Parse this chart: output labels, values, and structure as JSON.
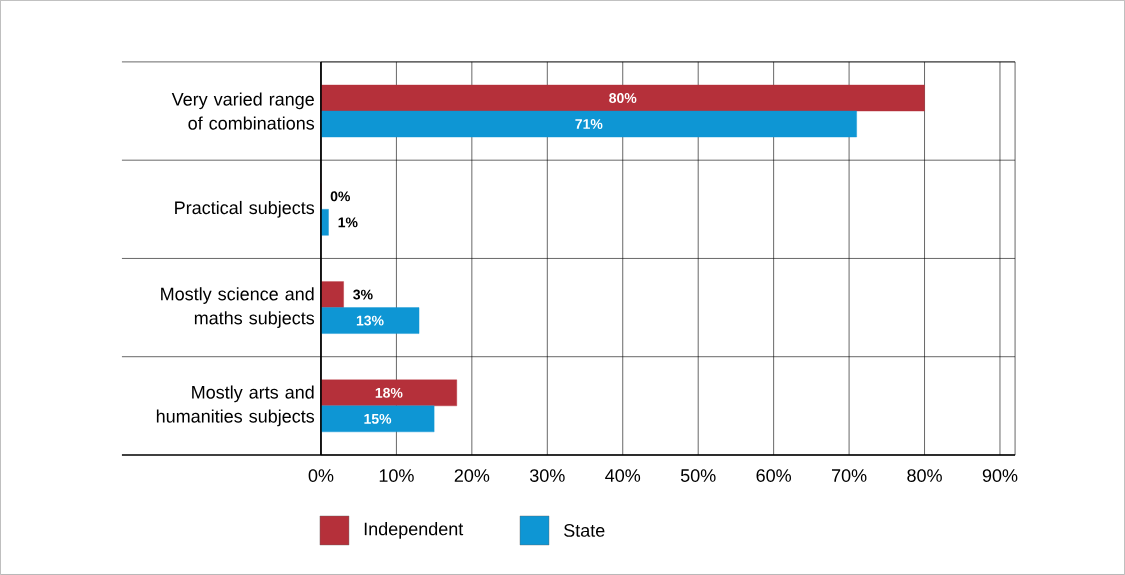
{
  "chart_data": {
    "type": "bar",
    "orientation": "horizontal",
    "categories": [
      "Very varied range of combinations",
      "Practical subjects",
      "Mostly science and maths subjects",
      "Mostly arts and humanities subjects"
    ],
    "series": [
      {
        "name": "Independent",
        "color": "#b5303a",
        "values": [
          80,
          0,
          3,
          18
        ],
        "value_labels": [
          "80%",
          "0%",
          "3%",
          "18%"
        ]
      },
      {
        "name": "State",
        "color": "#0e96d4",
        "values": [
          71,
          1,
          13,
          15
        ],
        "value_labels": [
          "71%",
          "1%",
          "13%",
          "15%"
        ]
      }
    ],
    "xlim": [
      0,
      92
    ],
    "xticks": [
      {
        "value": 0,
        "label": "0%"
      },
      {
        "value": 10,
        "label": "10%"
      },
      {
        "value": 20,
        "label": "20%"
      },
      {
        "value": 30,
        "label": "30%"
      },
      {
        "value": 40,
        "label": "40%"
      },
      {
        "value": 50,
        "label": "50%"
      },
      {
        "value": 60,
        "label": "60%"
      },
      {
        "value": 70,
        "label": "70%"
      },
      {
        "value": 80,
        "label": "80%"
      },
      {
        "value": 90,
        "label": "90%"
      }
    ],
    "grid": "x",
    "legend": "bottom"
  }
}
